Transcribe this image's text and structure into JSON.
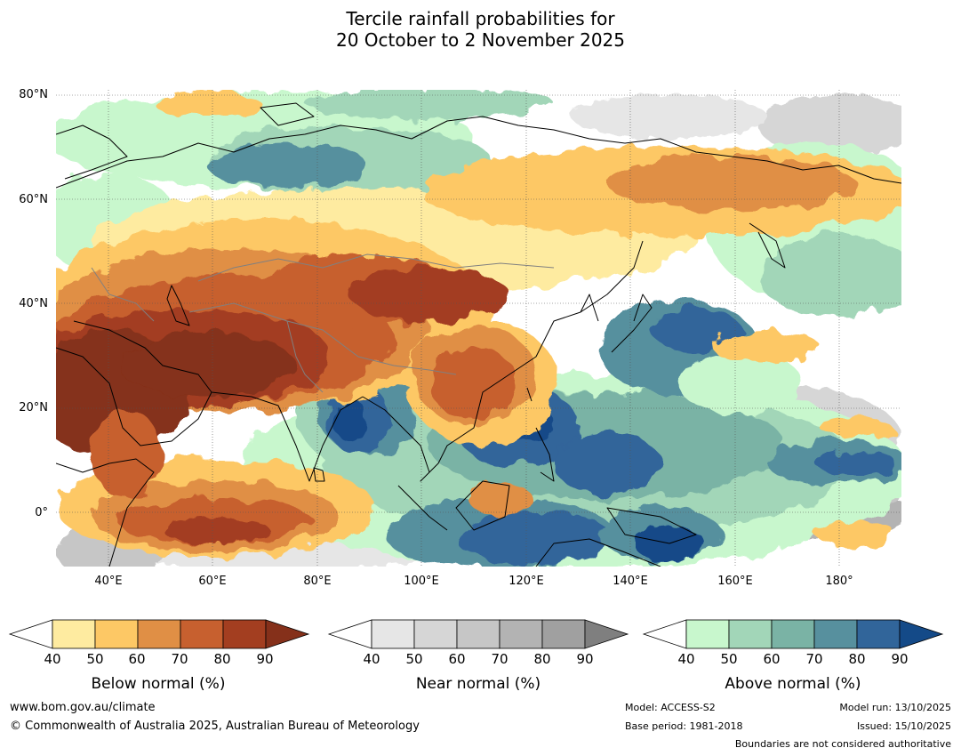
{
  "title": {
    "line1": "Tercile rainfall probabilities for",
    "line2": "20 October to 2 November 2025"
  },
  "map": {
    "region": "Asia and Indian Ocean",
    "lat_labels": [
      "80°N",
      "60°N",
      "40°N",
      "20°N",
      "0°"
    ],
    "lon_labels": [
      "40°E",
      "60°E",
      "80°E",
      "100°E",
      "120°E",
      "140°E",
      "160°E",
      "180°"
    ],
    "lat_range": [
      -10,
      80
    ],
    "lon_range": [
      30,
      192
    ]
  },
  "legend": {
    "below": {
      "label": "Below normal (%)",
      "ticks": [
        "40",
        "50",
        "60",
        "70",
        "80",
        "90"
      ],
      "colors": [
        "#ffffff",
        "#feeba0",
        "#fdc865",
        "#e08f45",
        "#c7602f",
        "#a33e20",
        "#85301a"
      ]
    },
    "near": {
      "label": "Near normal (%)",
      "ticks": [
        "40",
        "50",
        "60",
        "70",
        "80",
        "90"
      ],
      "colors": [
        "#ffffff",
        "#e6e6e6",
        "#d6d6d6",
        "#c6c6c6",
        "#b3b3b3",
        "#a0a0a0",
        "#7f7f7f"
      ]
    },
    "above": {
      "label": "Above normal (%)",
      "ticks": [
        "40",
        "50",
        "60",
        "70",
        "80",
        "90"
      ],
      "colors": [
        "#ffffff",
        "#c8f7cd",
        "#a2d6b8",
        "#7ab3a5",
        "#57909e",
        "#31659a",
        "#144a88"
      ]
    }
  },
  "footer": {
    "website": "www.bom.gov.au/climate",
    "copyright": "© Commonwealth of Australia 2025, Australian Bureau of Meteorology",
    "model": "Model: ACCESS-S2",
    "base_period": "Base period: 1981-2018",
    "model_run": "Model run: 13/10/2025",
    "issued": "Issued: 15/10/2025",
    "disclaimer": "Boundaries are not considered authoritative"
  }
}
